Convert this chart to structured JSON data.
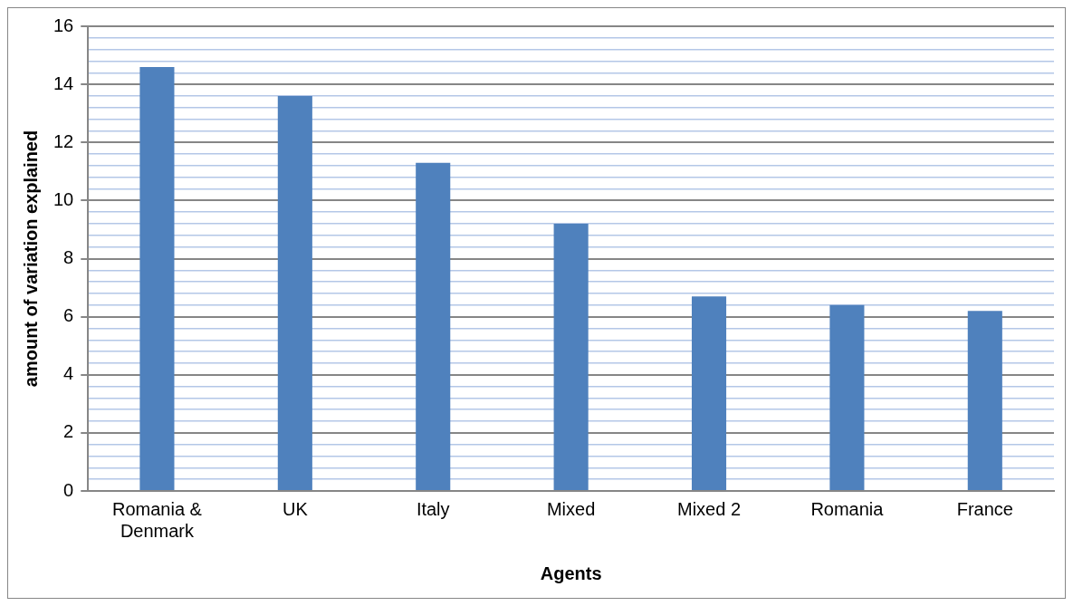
{
  "chart_data": {
    "type": "bar",
    "xlabel": "Agents",
    "ylabel": "amount of variation explained",
    "categories": [
      "Romania & Denmark",
      "UK",
      "Italy",
      "Mixed",
      "Mixed 2",
      "Romania",
      "France"
    ],
    "values": [
      14.6,
      13.6,
      11.3,
      9.2,
      6.7,
      6.4,
      6.2
    ],
    "color": "#4f81bd",
    "ylim": [
      0,
      16
    ],
    "yticks": [
      0,
      {
        "value": 0.4,
        "label": null
      },
      {
        "value": 0.8,
        "label": null
      },
      {
        "value": 1.2,
        "label": null
      },
      {
        "value": 1.6,
        "label": null
      },
      2,
      {
        "value": 2.4,
        "label": null
      },
      {
        "value": 2.8,
        "label": null
      },
      {
        "value": 3.2,
        "label": null
      },
      {
        "value": 3.6,
        "label": null
      },
      4,
      {
        "value": 4.4,
        "label": null
      },
      {
        "value": 4.8,
        "label": null
      },
      {
        "value": 5.2,
        "label": null
      },
      {
        "value": 5.6,
        "label": null
      },
      6,
      {
        "value": 6.4,
        "label": null
      },
      {
        "value": 6.8,
        "label": null
      },
      {
        "value": 7.2,
        "label": null
      },
      {
        "value": 7.6,
        "label": null
      },
      8,
      {
        "value": 8.4,
        "label": null
      },
      {
        "value": 8.8,
        "label": null
      },
      {
        "value": 9.2,
        "label": null
      },
      {
        "value": 9.6,
        "label": null
      },
      10,
      {
        "value": 10.4,
        "label": null
      },
      {
        "value": 10.8,
        "label": null
      },
      {
        "value": 11.2,
        "label": null
      },
      {
        "value": 11.6,
        "label": null
      },
      12,
      {
        "value": 12.4,
        "label": null
      },
      {
        "value": 12.8,
        "label": null
      },
      {
        "value": 13.2,
        "label": null
      },
      {
        "value": 13.6,
        "label": null
      },
      14,
      {
        "value": 14.4,
        "label": null
      },
      {
        "value": 14.8,
        "label": null
      },
      {
        "value": 15.2,
        "label": null
      },
      {
        "value": 15.6,
        "label": null
      },
      16
    ],
    "grid": "y"
  }
}
